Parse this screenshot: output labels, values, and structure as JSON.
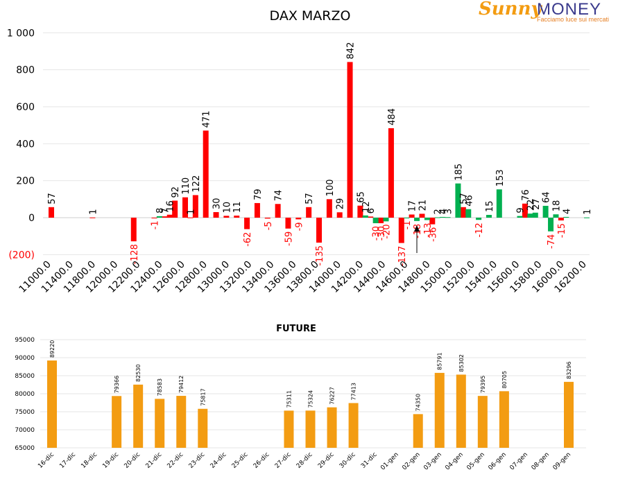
{
  "logo": {
    "brand_part1": "Sunny",
    "brand_part2": "MONEY",
    "tagline": "Facciamo luce sui mercati"
  },
  "colors": {
    "negative": "#ff0000",
    "positive": "#00b050",
    "future": "#f39c12",
    "text": "#000000",
    "grid": "#e6e6e6"
  },
  "chart_data": [
    {
      "type": "bar",
      "title": "DAX MARZO",
      "ylim": [
        -200,
        1000
      ],
      "yticks": [
        {
          "value": 1000,
          "label": "1 000"
        },
        {
          "value": 800,
          "label": "800"
        },
        {
          "value": 600,
          "label": "600"
        },
        {
          "value": 400,
          "label": "400"
        },
        {
          "value": 200,
          "label": "200"
        },
        {
          "value": 0,
          "label": "0"
        },
        {
          "value": -200,
          "label": "(200)"
        }
      ],
      "xtick_labels": [
        "11000.0",
        "11400.0",
        "11800.0",
        "12000.0",
        "12200.0",
        "12400.0",
        "12600.0",
        "12800.0",
        "13000.0",
        "13200.0",
        "13400.0",
        "13600.0",
        "13800.0",
        "14000.0",
        "14200.0",
        "14400.0",
        "14600.0",
        "14800.0",
        "15000.0",
        "15200.0",
        "15400.0",
        "15600.0",
        "15800.0",
        "16000.0",
        "16200.0"
      ],
      "series": [
        {
          "color": "red",
          "data": [
            {
              "x": 11000,
              "y": 57
            },
            {
              "x": 11400,
              "y": 1
            },
            {
              "x": 11800,
              "y": -128
            },
            {
              "x": 12000,
              "y": -1
            },
            {
              "x": 12100,
              "y": 7
            },
            {
              "x": 12150,
              "y": 16
            },
            {
              "x": 12200,
              "y": 92
            },
            {
              "x": 12300,
              "y": 110
            },
            {
              "x": 12350,
              "y": 1
            },
            {
              "x": 12400,
              "y": 122
            },
            {
              "x": 12500,
              "y": 471
            },
            {
              "x": 12600,
              "y": 30
            },
            {
              "x": 12700,
              "y": 10
            },
            {
              "x": 12800,
              "y": 11
            },
            {
              "x": 12900,
              "y": -62
            },
            {
              "x": 13000,
              "y": 79
            },
            {
              "x": 13100,
              "y": -5
            },
            {
              "x": 13200,
              "y": 74
            },
            {
              "x": 13300,
              "y": -59
            },
            {
              "x": 13400,
              "y": -9
            },
            {
              "x": 13500,
              "y": 57
            },
            {
              "x": 13600,
              "y": -135
            },
            {
              "x": 13700,
              "y": 100
            },
            {
              "x": 13800,
              "y": 29
            },
            {
              "x": 13900,
              "y": 842
            },
            {
              "x": 14000,
              "y": 65
            },
            {
              "x": 14100,
              "y": 6
            },
            {
              "x": 14200,
              "y": -30
            },
            {
              "x": 14300,
              "y": 484
            },
            {
              "x": 14400,
              "y": -137
            },
            {
              "x": 14500,
              "y": 17
            },
            {
              "x": 14600,
              "y": 21
            },
            {
              "x": 14700,
              "y": -36
            },
            {
              "x": 15000,
              "y": 57
            },
            {
              "x": 15600,
              "y": 76
            },
            {
              "x": 15950,
              "y": -15
            }
          ]
        },
        {
          "color": "green",
          "data": [
            {
              "x": 12050,
              "y": 8
            },
            {
              "x": 14050,
              "y": 12
            },
            {
              "x": 14150,
              "y": -30
            },
            {
              "x": 14250,
              "y": -20
            },
            {
              "x": 14450,
              "y": -1
            },
            {
              "x": 14550,
              "y": -18
            },
            {
              "x": 14650,
              "y": -13
            },
            {
              "x": 14750,
              "y": 2
            },
            {
              "x": 14800,
              "y": 4
            },
            {
              "x": 14850,
              "y": 3
            },
            {
              "x": 14950,
              "y": 185
            },
            {
              "x": 15050,
              "y": 46
            },
            {
              "x": 15150,
              "y": -12
            },
            {
              "x": 15250,
              "y": 15
            },
            {
              "x": 15350,
              "y": 153
            },
            {
              "x": 15550,
              "y": 9
            },
            {
              "x": 15650,
              "y": 22
            },
            {
              "x": 15700,
              "y": 27
            },
            {
              "x": 15800,
              "y": 64
            },
            {
              "x": 15850,
              "y": -74
            },
            {
              "x": 15900,
              "y": 18
            },
            {
              "x": 16000,
              "y": 4
            },
            {
              "x": 16200,
              "y": 1
            }
          ]
        }
      ]
    },
    {
      "type": "bar",
      "title": "FUTURE",
      "ylim": [
        65000,
        95000
      ],
      "yticks": [
        "95000",
        "90000",
        "85000",
        "80000",
        "75000",
        "70000",
        "65000"
      ],
      "categories": [
        "16-dic",
        "17-dic",
        "18-dic",
        "19-dic",
        "20-dic",
        "21-dic",
        "22-dic",
        "23-dic",
        "24-dic",
        "25-dic",
        "26-dic",
        "27-dic",
        "28-dic",
        "29-dic",
        "30-dic",
        "31-dic",
        "01-gen",
        "02-gen",
        "03-gen",
        "04-gen",
        "05-gen",
        "06-gen",
        "07-gen",
        "08-gen",
        "09-gen"
      ],
      "values": [
        89220,
        null,
        null,
        79366,
        82530,
        78583,
        79412,
        75817,
        null,
        null,
        null,
        75311,
        75324,
        76227,
        77413,
        null,
        null,
        74350,
        85791,
        85302,
        79395,
        80705,
        null,
        null,
        83296
      ]
    }
  ]
}
